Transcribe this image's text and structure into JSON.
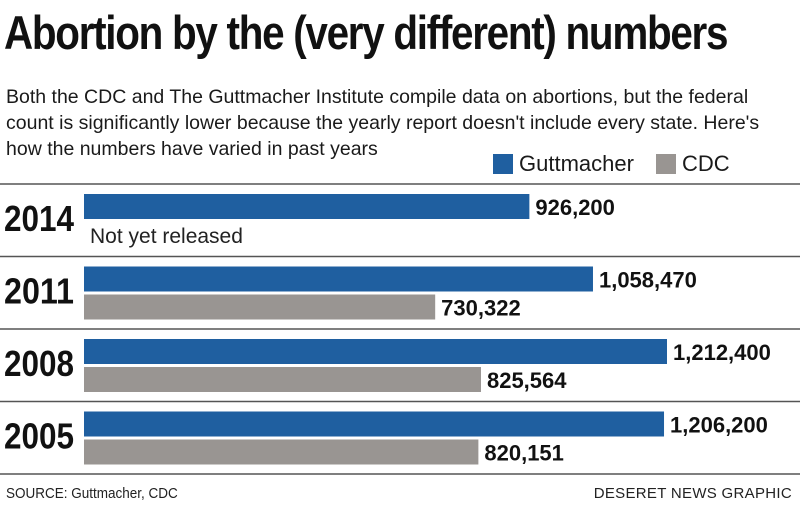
{
  "title": "Abortion by the (very different) numbers",
  "subtitle": "Both the CDC and The Guttmacher Institute compile data on abortions, but the federal count is significantly lower because the yearly report doesn't include every state. Here's how the numbers have varied in past years",
  "legend": [
    {
      "label": "Guttmacher",
      "color": "#1f5fa0"
    },
    {
      "label": "CDC",
      "color": "#999592"
    }
  ],
  "chart_data": {
    "type": "bar",
    "orientation": "horizontal",
    "categories": [
      "2014",
      "2011",
      "2008",
      "2005"
    ],
    "series": [
      {
        "name": "Guttmacher",
        "color": "#1f5fa0",
        "values": [
          926200,
          1058470,
          1212400,
          1206200
        ],
        "labels": [
          "926,200",
          "1,058,470",
          "1,212,400",
          "1,206,200"
        ]
      },
      {
        "name": "CDC",
        "color": "#999592",
        "values": [
          null,
          730322,
          825564,
          820151
        ],
        "labels": [
          "Not yet released",
          "730,322",
          "825,564",
          "820,151"
        ]
      }
    ],
    "annotations": [
      {
        "category": "2014",
        "series": "CDC",
        "text": "Not yet released"
      }
    ],
    "grid": false,
    "legend_position": "top-right"
  },
  "source": "SOURCE: Guttmacher, CDC",
  "credit": "DESERET NEWS GRAPHIC"
}
